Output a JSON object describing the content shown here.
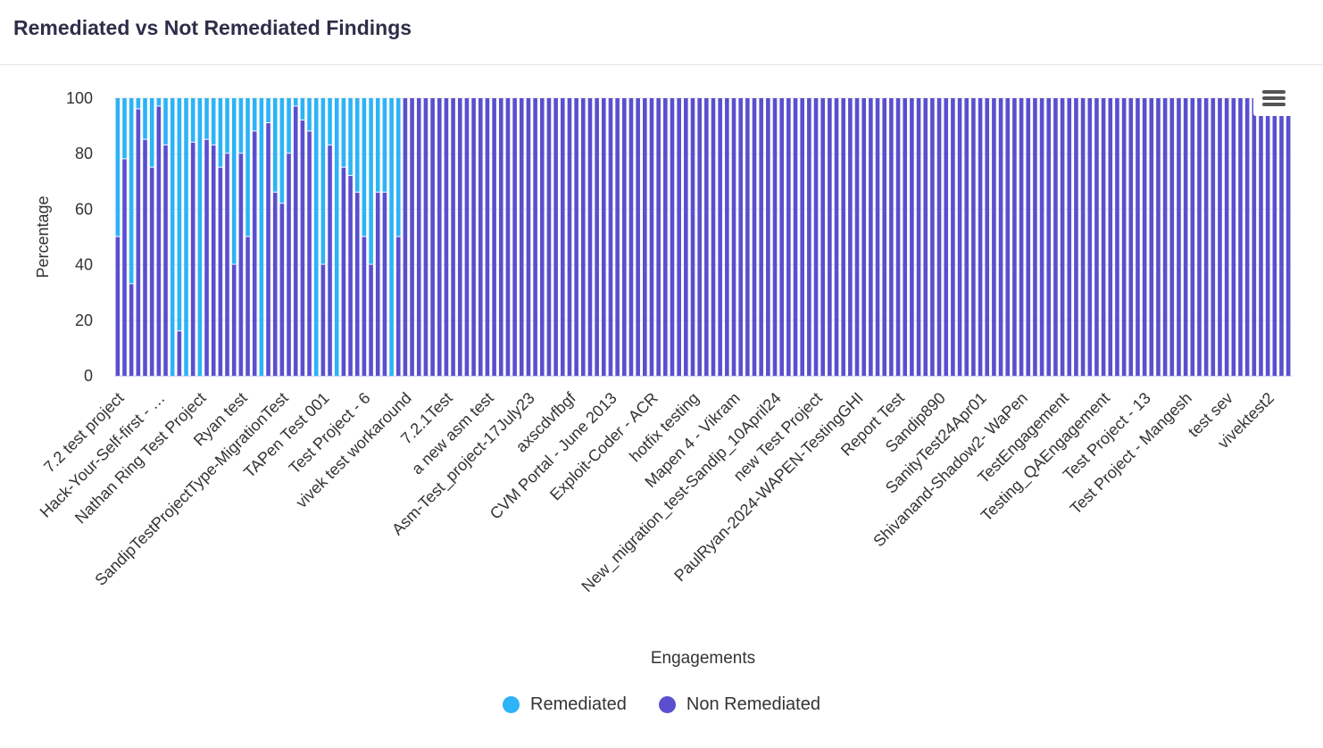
{
  "header": {
    "title": "Remediated vs Not Remediated Findings"
  },
  "menu": {
    "icon": "hamburger-menu-icon"
  },
  "legend": {
    "remediated": {
      "label": "Remediated",
      "color": "#2db3f7"
    },
    "non_remediated": {
      "label": "Non Remediated",
      "color": "#5a4fcf"
    }
  },
  "chart_data": {
    "type": "bar",
    "stacked": true,
    "xlabel": "Engagements",
    "ylabel": "Percentage",
    "ylim": [
      0,
      100
    ],
    "yticks": [
      0,
      20,
      40,
      60,
      80,
      100
    ],
    "grid": true,
    "legend_position": "bottom",
    "visible_tick_labels": [
      "7.2 test project",
      "Hack-Your-Self-first - …",
      "Nathan Ring Test Project",
      "Ryan test",
      "SandipTestProjectType-MigrationTest",
      "TAPen Test 001",
      "Test Project - 6",
      "vivek test workaround",
      "7.2.1Test",
      "a new asm test",
      "Asm-Test_project-17July23",
      "axscdvfbgf",
      "CVM Portal - June 2013",
      "Exploit-Coder - ACR",
      "hotfix testing",
      "Mapen 4 - Vikram",
      "New_migration_test-Sandip_10April24",
      "new Test Project",
      "PaulRyan-2024-WAPEN-TestingGHI",
      "Report Test",
      "Sandip890",
      "SanityTest24Apr01",
      "Shivanand-Shadow2- WaPen",
      "TestEngagement",
      "Testing_QAEngagement",
      "Test Project - 13",
      "Test Project - Mangesh",
      "test sev",
      "vivektest2"
    ],
    "tick_label_every": 6,
    "series": [
      {
        "name": "Non Remediated",
        "values": [
          50,
          78,
          33,
          96,
          85,
          75,
          97,
          83,
          0,
          16,
          0,
          84,
          0,
          85,
          83,
          75,
          80,
          40,
          80,
          50,
          88,
          0,
          91,
          66,
          62,
          80,
          97,
          92,
          88,
          0,
          40,
          83,
          0,
          75,
          72,
          66,
          50,
          40,
          66,
          66,
          0,
          50,
          100,
          100,
          100,
          100,
          100,
          100,
          100,
          100,
          100,
          100,
          100,
          100,
          100,
          100,
          100,
          100,
          100,
          100,
          100,
          100,
          100,
          100,
          100,
          100,
          100,
          100,
          100,
          100,
          100,
          100,
          100,
          100,
          100,
          100,
          100,
          100,
          100,
          100,
          100,
          100,
          100,
          100,
          100,
          100,
          100,
          100,
          100,
          100,
          100,
          100,
          100,
          100,
          100,
          100,
          100,
          100,
          100,
          100,
          100,
          100,
          100,
          100,
          100,
          100,
          100,
          100,
          100,
          100,
          100,
          100,
          100,
          100,
          100,
          100,
          100,
          100,
          100,
          100,
          100,
          100,
          100,
          100,
          100,
          100,
          100,
          100,
          100,
          100,
          100,
          100,
          100,
          100,
          100,
          100,
          100,
          100,
          100,
          100,
          100,
          100,
          100,
          100,
          100,
          100,
          100,
          100,
          100,
          100,
          100,
          100,
          100,
          100,
          100,
          100,
          100,
          100,
          100,
          100,
          100,
          100,
          100,
          100,
          100,
          100,
          100,
          100,
          100,
          100,
          100,
          100
        ]
      },
      {
        "name": "Remediated",
        "values": [
          50,
          22,
          67,
          4,
          15,
          25,
          3,
          17,
          100,
          84,
          100,
          16,
          100,
          15,
          17,
          25,
          20,
          60,
          20,
          50,
          12,
          100,
          9,
          34,
          38,
          20,
          3,
          8,
          12,
          100,
          60,
          17,
          100,
          25,
          28,
          34,
          50,
          60,
          34,
          34,
          100,
          50,
          0,
          0,
          0,
          0,
          0,
          0,
          0,
          0,
          0,
          0,
          0,
          0,
          0,
          0,
          0,
          0,
          0,
          0,
          0,
          0,
          0,
          0,
          0,
          0,
          0,
          0,
          0,
          0,
          0,
          0,
          0,
          0,
          0,
          0,
          0,
          0,
          0,
          0,
          0,
          0,
          0,
          0,
          0,
          0,
          0,
          0,
          0,
          0,
          0,
          0,
          0,
          0,
          0,
          0,
          0,
          0,
          0,
          0,
          0,
          0,
          0,
          0,
          0,
          0,
          0,
          0,
          0,
          0,
          0,
          0,
          0,
          0,
          0,
          0,
          0,
          0,
          0,
          0,
          0,
          0,
          0,
          0,
          0,
          0,
          0,
          0,
          0,
          0,
          0,
          0,
          0,
          0,
          0,
          0,
          0,
          0,
          0,
          0,
          0,
          0,
          0,
          0,
          0,
          0,
          0,
          0,
          0,
          0,
          0,
          0,
          0,
          0,
          0,
          0,
          0,
          0,
          0,
          0,
          0,
          0,
          0,
          0,
          0,
          0,
          0,
          0,
          0,
          0,
          0,
          0
        ]
      }
    ]
  }
}
